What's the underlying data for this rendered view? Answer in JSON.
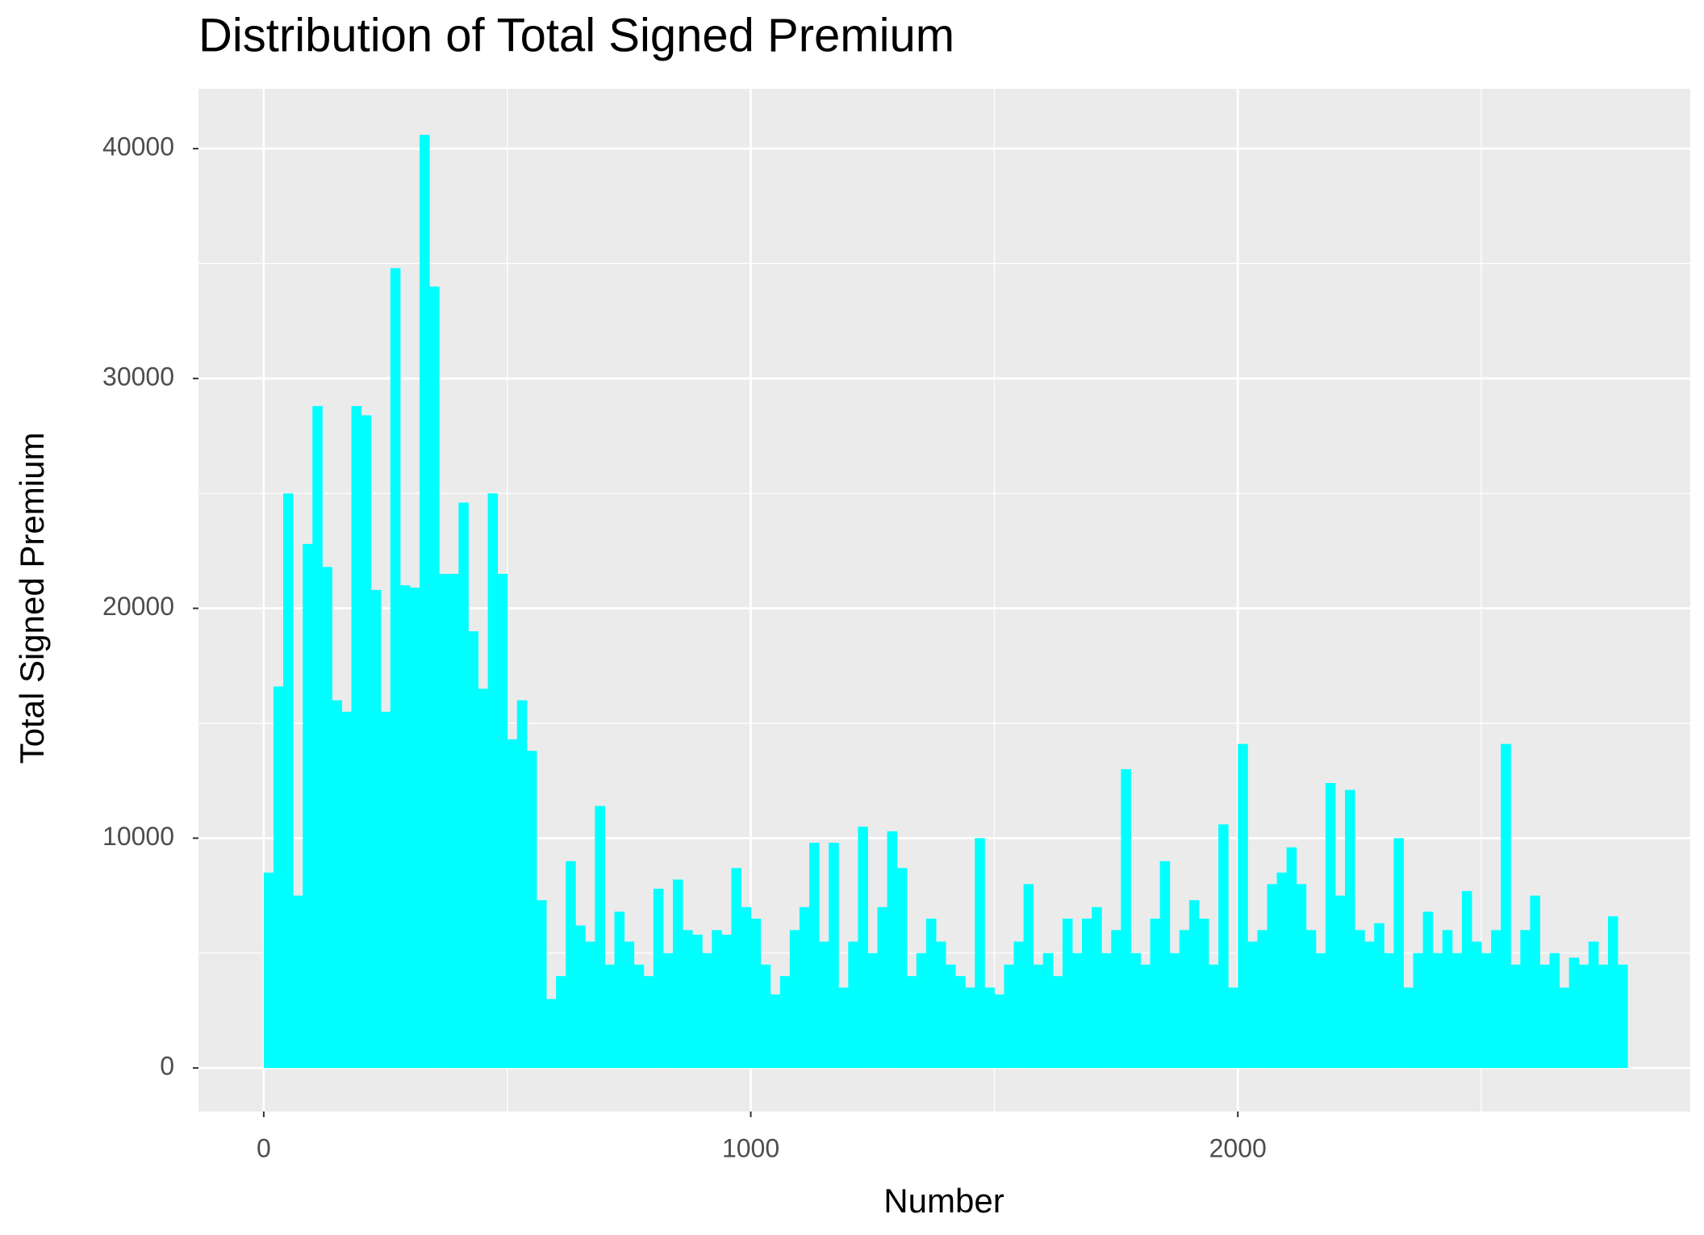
{
  "chart_data": {
    "type": "bar",
    "title": "Distribution of Total Signed Premium",
    "x_label": "Number",
    "y_label": "Total Signed Premium",
    "color": "#00ffff",
    "xlim": [
      -134,
      2929
    ],
    "ylim": [
      -1893,
      42604
    ],
    "xticks": [
      0,
      1000,
      2000
    ],
    "yticks": [
      0,
      10000,
      20000,
      30000,
      40000
    ],
    "x_minor_grid": [
      500,
      1500,
      2500
    ],
    "y_minor_grid": [
      5000,
      15000,
      25000,
      35000
    ],
    "grid": true,
    "x": [
      0,
      20,
      40,
      60,
      80,
      100,
      120,
      140,
      160,
      180,
      200,
      220,
      240,
      260,
      280,
      300,
      320,
      340,
      360,
      380,
      400,
      420,
      440,
      460,
      480,
      500,
      520,
      540,
      560,
      580,
      600,
      620,
      640,
      660,
      680,
      700,
      720,
      740,
      760,
      780,
      800,
      820,
      840,
      860,
      880,
      900,
      920,
      940,
      960,
      980,
      1000,
      1020,
      1040,
      1060,
      1080,
      1100,
      1120,
      1140,
      1160,
      1180,
      1200,
      1220,
      1240,
      1260,
      1280,
      1300,
      1320,
      1340,
      1360,
      1380,
      1400,
      1420,
      1440,
      1460,
      1480,
      1500,
      1520,
      1540,
      1560,
      1580,
      1600,
      1620,
      1640,
      1660,
      1680,
      1700,
      1720,
      1740,
      1760,
      1780,
      1800,
      1820,
      1840,
      1860,
      1880,
      1900,
      1920,
      1940,
      1960,
      1980,
      2000,
      2020,
      2040,
      2060,
      2080,
      2100,
      2120,
      2140,
      2160,
      2180,
      2200,
      2220,
      2240,
      2260,
      2280,
      2300,
      2320,
      2340,
      2360,
      2380,
      2400,
      2420,
      2440,
      2460,
      2480,
      2500,
      2520,
      2540,
      2560,
      2580,
      2600,
      2620,
      2640,
      2660,
      2680,
      2700,
      2720,
      2740,
      2760,
      2780
    ],
    "values": [
      8500,
      16600,
      25000,
      7500,
      22800,
      28800,
      21800,
      16000,
      15500,
      28800,
      28400,
      20800,
      15500,
      34800,
      21000,
      20900,
      40600,
      34000,
      21500,
      21500,
      24600,
      19000,
      16500,
      25000,
      21500,
      14300,
      16000,
      13800,
      7300,
      3000,
      4000,
      9000,
      6200,
      5500,
      11400,
      4500,
      6800,
      5500,
      4500,
      4000,
      7800,
      5000,
      8200,
      6000,
      5800,
      5000,
      6000,
      5800,
      8700,
      7000,
      6500,
      4500,
      3200,
      4000,
      6000,
      7000,
      9800,
      5500,
      9800,
      3500,
      5500,
      10500,
      5000,
      7000,
      10300,
      8700,
      4000,
      5000,
      6500,
      5500,
      4500,
      4000,
      3500,
      10000,
      3500,
      3200,
      4500,
      5500,
      8000,
      4500,
      5000,
      4000,
      6500,
      5000,
      6500,
      7000,
      5000,
      6000,
      13000,
      5000,
      4500,
      6500,
      9000,
      5000,
      6000,
      7300,
      6500,
      4500,
      10600,
      3500,
      14100,
      5500,
      6000,
      8000,
      8500,
      9600,
      8000,
      6000,
      5000,
      12400,
      7500,
      12100,
      6000,
      5500,
      6300,
      5000,
      10000,
      3500,
      5000,
      6800,
      5000,
      6000,
      5000,
      7700,
      5500,
      5000,
      6000,
      14100,
      4500,
      6000,
      7500,
      4500,
      5000,
      3500,
      4800,
      4500,
      5500,
      4500,
      6600,
      4500
    ]
  }
}
